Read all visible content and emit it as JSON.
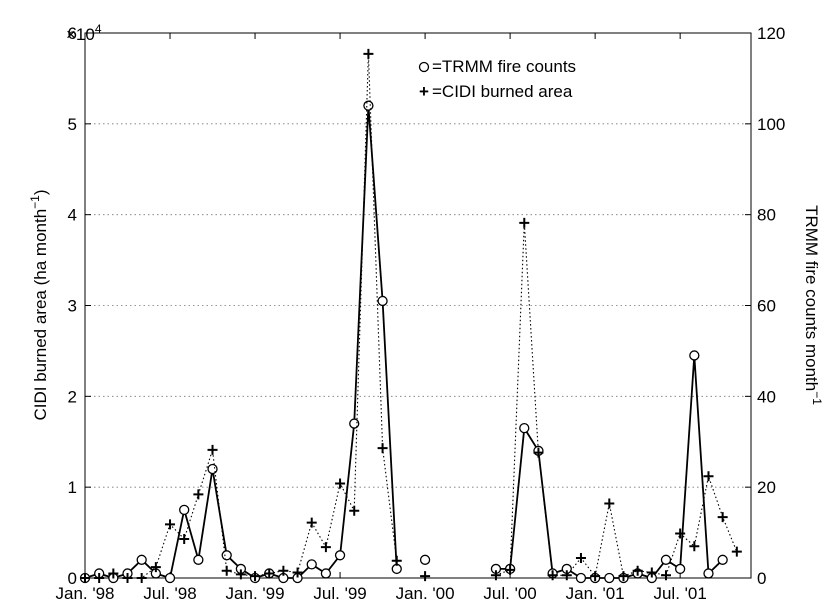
{
  "chart_data": {
    "type": "line",
    "xlabel": "",
    "ylabel_left": "CIDI burned area (ha month",
    "ylabel_left_sup": "−1",
    "ylabel_left_close": ")",
    "ylabel_right": "TRMM fire counts month",
    "ylabel_right_sup": "−1",
    "y_left_multiplier": "×10",
    "y_left_multiplier_exp": "4",
    "ylim_left": [
      0,
      6
    ],
    "ylim_right": [
      0,
      120
    ],
    "y_left_ticks": [
      "0",
      "1",
      "2",
      "3",
      "4",
      "5",
      "6"
    ],
    "y_right_ticks": [
      "0",
      "20",
      "40",
      "60",
      "80",
      "100",
      "120"
    ],
    "x_ticks": [
      {
        "month": 0,
        "label": "Jan. '98"
      },
      {
        "month": 6,
        "label": "Jul. '98"
      },
      {
        "month": 12,
        "label": "Jan. '99"
      },
      {
        "month": 18,
        "label": "Jul. '99"
      },
      {
        "month": 24,
        "label": "Jan. '00"
      },
      {
        "month": 30,
        "label": "Jul. '00"
      },
      {
        "month": 36,
        "label": "Jan. '01"
      },
      {
        "month": 42,
        "label": "Jul. '01"
      }
    ],
    "xlim": [
      0,
      47
    ],
    "grid": "horizontal-dotted",
    "legend_position": "top-center",
    "legend": [
      {
        "marker": "○",
        "text": "=TRMM fire counts"
      },
      {
        "marker": "+",
        "text": "=CIDI burned area"
      }
    ],
    "series": [
      {
        "name": "TRMM fire counts",
        "axis": "right",
        "style": "solid-circles",
        "points": [
          [
            0,
            0
          ],
          [
            1,
            1
          ],
          [
            2,
            0
          ],
          [
            3,
            1
          ],
          [
            4,
            4
          ],
          [
            5,
            1
          ],
          [
            6,
            0
          ],
          [
            7,
            15
          ],
          [
            8,
            4
          ],
          [
            9,
            24
          ],
          [
            10,
            5
          ],
          [
            11,
            2
          ],
          [
            12,
            0
          ],
          [
            13,
            1
          ],
          [
            14,
            0
          ],
          [
            15,
            0
          ],
          [
            16,
            3
          ],
          [
            17,
            1
          ],
          [
            18,
            5
          ],
          [
            19,
            34
          ],
          [
            20,
            104
          ],
          [
            21,
            61
          ],
          [
            22,
            2
          ],
          [
            24,
            4
          ],
          [
            29,
            2
          ],
          [
            30,
            2
          ],
          [
            31,
            33
          ],
          [
            32,
            28
          ],
          [
            33,
            1
          ],
          [
            34,
            2
          ],
          [
            35,
            0
          ],
          [
            36,
            0
          ],
          [
            37,
            0
          ],
          [
            38,
            0
          ],
          [
            39,
            1
          ],
          [
            40,
            0
          ],
          [
            41,
            4
          ],
          [
            42,
            2
          ],
          [
            43,
            49
          ],
          [
            44,
            1
          ],
          [
            45,
            4
          ]
        ]
      },
      {
        "name": "CIDI burned area",
        "axis": "left",
        "style": "dotted-plus",
        "points": [
          [
            0,
            0.0
          ],
          [
            1,
            0.0
          ],
          [
            2,
            0.05
          ],
          [
            3,
            0.0
          ],
          [
            4,
            0.0
          ],
          [
            5,
            0.12
          ],
          [
            6,
            0.59
          ],
          [
            7,
            0.43
          ],
          [
            8,
            0.92
          ],
          [
            9,
            1.41
          ],
          [
            10,
            0.08
          ],
          [
            11,
            0.04
          ],
          [
            12,
            0.02
          ],
          [
            13,
            0.05
          ],
          [
            14,
            0.08
          ],
          [
            15,
            0.06
          ],
          [
            16,
            0.61
          ],
          [
            17,
            0.34
          ],
          [
            18,
            1.04
          ],
          [
            19,
            0.74
          ],
          [
            20,
            5.77
          ],
          [
            21,
            1.43
          ],
          [
            22,
            0.19
          ],
          [
            24,
            0.02
          ],
          [
            29,
            0.03
          ],
          [
            30,
            0.09
          ],
          [
            31,
            3.91
          ],
          [
            32,
            1.38
          ],
          [
            33,
            0.03
          ],
          [
            34,
            0.03
          ],
          [
            35,
            0.22
          ],
          [
            36,
            0.02
          ],
          [
            37,
            0.82
          ],
          [
            38,
            0.02
          ],
          [
            39,
            0.08
          ],
          [
            40,
            0.06
          ],
          [
            41,
            0.03
          ],
          [
            42,
            0.49
          ],
          [
            43,
            0.35
          ],
          [
            44,
            1.12
          ],
          [
            45,
            0.67
          ],
          [
            46,
            0.29
          ]
        ]
      }
    ]
  }
}
